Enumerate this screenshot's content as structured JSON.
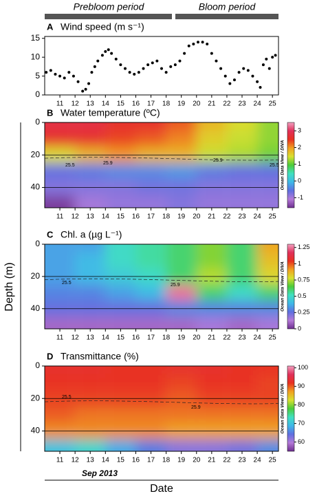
{
  "figure": {
    "periods": [
      "Prebloom period",
      "Bloom period"
    ],
    "x_note": "Sep 2013",
    "xlabel": "Date",
    "ylabel": "Depth (m)"
  },
  "chart_data": [
    {
      "type": "scatter",
      "panel": "A",
      "title": "Wind speed (m s⁻¹)",
      "color": "#000000",
      "x": [
        10.1,
        10.4,
        10.7,
        11,
        11.3,
        11.6,
        11.9,
        12.2,
        12.5,
        12.7,
        12.9,
        13.1,
        13.3,
        13.5,
        13.8,
        14,
        14.2,
        14.4,
        14.7,
        15,
        15.3,
        15.6,
        15.9,
        16.2,
        16.5,
        16.8,
        17.1,
        17.4,
        17.7,
        18,
        18.3,
        18.6,
        18.9,
        19.2,
        19.5,
        19.8,
        20.1,
        20.4,
        20.7,
        21,
        21.3,
        21.6,
        21.9,
        22.2,
        22.5,
        22.8,
        23.1,
        23.4,
        23.7,
        24,
        24.2,
        24.4,
        24.6,
        24.8,
        25,
        25.2
      ],
      "values": [
        6,
        6.5,
        5.5,
        5,
        4.5,
        6,
        5,
        3.5,
        1,
        1.5,
        3,
        6,
        7.5,
        9,
        10.5,
        11.5,
        12,
        11,
        9.5,
        8,
        7,
        6,
        5.5,
        6,
        7,
        8,
        8.5,
        9,
        7,
        6,
        7.5,
        8,
        9,
        11,
        13,
        13.5,
        14,
        14,
        13.5,
        11,
        9,
        7,
        5,
        3,
        4,
        6,
        7,
        6.5,
        5,
        3.5,
        2,
        8,
        9.5,
        7,
        10,
        10.5
      ],
      "xlim": [
        10,
        25.4
      ],
      "xticks": [
        11,
        12,
        13,
        14,
        15,
        16,
        17,
        18,
        19,
        20,
        21,
        22,
        23,
        24,
        25
      ],
      "ylim": [
        0,
        15.5
      ],
      "yticks": [
        0,
        5,
        10,
        15
      ]
    },
    {
      "type": "heatmap",
      "panel": "B",
      "title": "Water temperature (ºC)",
      "colorbar_label": "Ocean Data View / DIVA",
      "x": [
        11,
        13,
        15,
        17,
        19,
        21,
        23,
        25
      ],
      "y": [
        0,
        10,
        20,
        30,
        40,
        50
      ],
      "z": [
        [
          2.8,
          2.8,
          2.6,
          2.6,
          2.3,
          1.8,
          1.5,
          1.2
        ],
        [
          2.6,
          2.6,
          2.4,
          2.3,
          2.1,
          1.6,
          1.4,
          1.2
        ],
        [
          1.5,
          1.8,
          2.0,
          1.8,
          1.8,
          1.4,
          1.3,
          1.1
        ],
        [
          -0.6,
          -0.5,
          -0.4,
          -0.4,
          -0.3,
          -0.5,
          -0.6,
          -0.6
        ],
        [
          -0.8,
          -0.8,
          -0.8,
          -0.7,
          -0.7,
          -0.8,
          -0.8,
          -0.8
        ],
        [
          -1.5,
          -1.0,
          -0.9,
          -0.9,
          -0.8,
          -0.9,
          -0.9,
          -0.9
        ]
      ],
      "zlim": [
        -1.6,
        3.5
      ],
      "zticks": [
        -1,
        0,
        1,
        2,
        3
      ],
      "xlim": [
        10,
        25.4
      ],
      "xticks": [
        11,
        12,
        13,
        14,
        15,
        16,
        17,
        18,
        19,
        20,
        21,
        22,
        23,
        24,
        25
      ],
      "ylim": [
        0,
        52.5
      ],
      "yticks": [
        0,
        20,
        40
      ],
      "grid": true,
      "annotations": [
        "25.5",
        "25.9",
        "25.9",
        "25.5"
      ],
      "colorscale": [
        "#6e2f8f",
        "#b57ad8",
        "#5f6fe0",
        "#3fb8e8",
        "#40e0c0",
        "#4ccb3a",
        "#d8e030",
        "#f0a020",
        "#e83020",
        "#e0305a",
        "#f2a0c0"
      ]
    },
    {
      "type": "heatmap",
      "panel": "C",
      "title": "Chl. a (µg L⁻¹)",
      "colorbar_label": "Ocean Data View / DIVA",
      "x": [
        11,
        13,
        15,
        17,
        19,
        21,
        23,
        25
      ],
      "y": [
        0,
        10,
        20,
        30,
        40,
        50
      ],
      "z": [
        [
          0.35,
          0.35,
          0.5,
          0.55,
          0.6,
          0.7,
          0.6,
          0.9
        ],
        [
          0.35,
          0.4,
          0.5,
          0.55,
          0.6,
          0.7,
          0.6,
          0.85
        ],
        [
          0.35,
          0.4,
          0.45,
          0.5,
          0.6,
          0.75,
          0.6,
          0.8
        ],
        [
          0.3,
          0.3,
          0.35,
          0.4,
          1.25,
          0.6,
          0.5,
          0.6
        ],
        [
          0.25,
          0.25,
          0.25,
          0.25,
          0.3,
          0.3,
          0.3,
          0.3
        ],
        [
          0.1,
          0.1,
          0.1,
          0.1,
          0.1,
          0.15,
          0.1,
          0.15
        ]
      ],
      "zlim": [
        0,
        1.3
      ],
      "zticks": [
        0,
        0.25,
        0.5,
        0.75,
        1,
        1.25
      ],
      "xlim": [
        10,
        25.4
      ],
      "xticks": [
        11,
        12,
        13,
        14,
        15,
        16,
        17,
        18,
        19,
        20,
        21,
        22,
        23,
        24,
        25
      ],
      "ylim": [
        0,
        52.5
      ],
      "yticks": [
        0,
        20,
        40
      ],
      "grid": true,
      "annotations": [
        "25.5",
        "25.9"
      ],
      "colorscale": [
        "#6e2f8f",
        "#b57ad8",
        "#5f6fe0",
        "#3fb8e8",
        "#40e0c0",
        "#4ccb3a",
        "#d8e030",
        "#f0a020",
        "#e83020",
        "#e0305a",
        "#f2a0c0"
      ]
    },
    {
      "type": "heatmap",
      "panel": "D",
      "title": "Transmittance (%)",
      "colorbar_label": "Ocean Data View / DIVA",
      "x": [
        11,
        13,
        15,
        17,
        19,
        21,
        23,
        25
      ],
      "y": [
        0,
        10,
        20,
        30,
        40,
        50
      ],
      "z": [
        [
          93,
          93,
          92,
          92,
          93,
          93,
          92,
          92
        ],
        [
          92,
          92,
          92,
          92,
          91,
          92,
          92,
          91
        ],
        [
          91,
          91,
          91,
          91,
          90,
          91,
          91,
          91
        ],
        [
          90,
          89,
          89,
          89,
          89,
          89,
          89,
          89
        ],
        [
          88,
          88,
          88,
          88,
          87,
          87,
          87,
          87
        ],
        [
          70,
          72,
          68,
          65,
          62,
          62,
          63,
          66
        ]
      ],
      "zlim": [
        55,
        101
      ],
      "zticks": [
        60,
        70,
        80,
        90,
        100
      ],
      "xlim": [
        10,
        25.4
      ],
      "xticks": [
        11,
        12,
        13,
        14,
        15,
        16,
        17,
        18,
        19,
        20,
        21,
        22,
        23,
        24,
        25
      ],
      "ylim": [
        0,
        52.5
      ],
      "yticks": [
        0,
        20,
        40
      ],
      "grid": true,
      "annotations": [
        "25.5",
        "25.9"
      ],
      "colorscale": [
        "#6e2f8f",
        "#b57ad8",
        "#5f6fe0",
        "#3fb8e8",
        "#40e0c0",
        "#4ccb3a",
        "#d8e030",
        "#f0a020",
        "#e83020",
        "#e0305a",
        "#f2a0c0"
      ]
    }
  ]
}
